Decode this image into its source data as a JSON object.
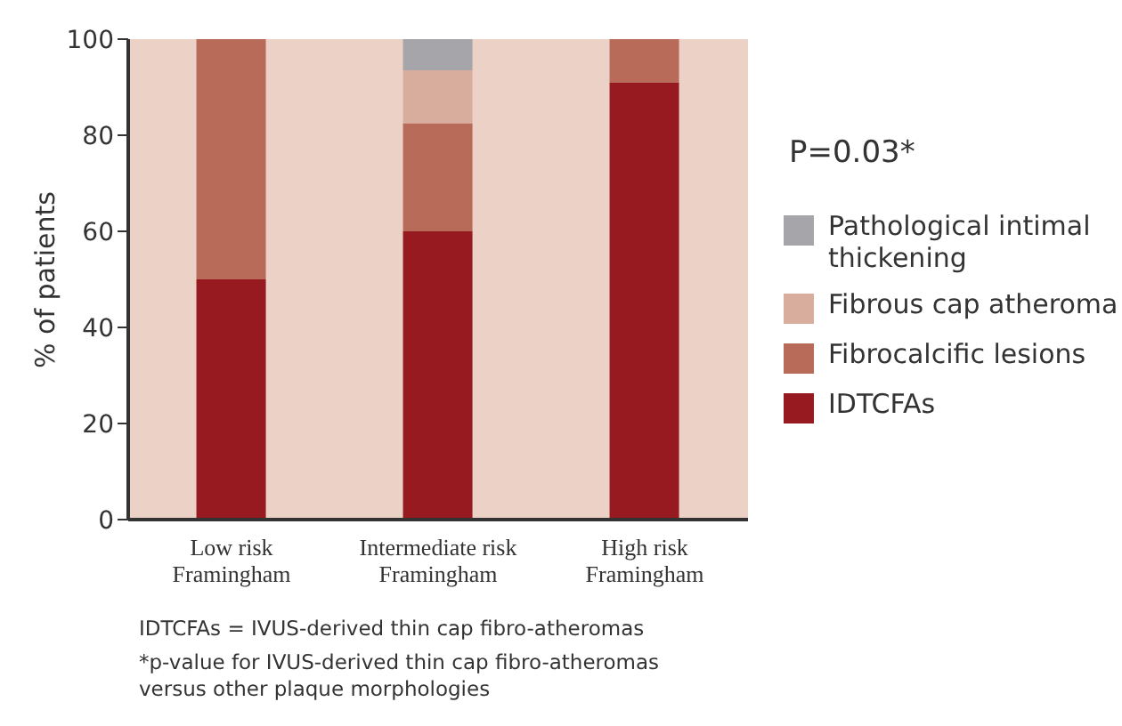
{
  "chart_data": {
    "type": "bar",
    "stacked": true,
    "ylabel": "% of patients",
    "categories": [
      "Low risk Framingham",
      "Intermediate risk Framingham",
      "High risk Framingham"
    ],
    "series": [
      {
        "name": "IDTCFAs",
        "color": "#961a1f",
        "values": [
          50,
          60,
          91
        ]
      },
      {
        "name": "Fibrocalcific lesions",
        "color": "#b96b59",
        "values": [
          50,
          22.5,
          9
        ]
      },
      {
        "name": "Fibrous cap atheroma",
        "color": "#d9ad9d",
        "values": [
          0,
          11,
          0
        ]
      },
      {
        "name": "Pathological intimal thickening",
        "color": "#a6a6aa",
        "values": [
          0,
          6.5,
          0
        ]
      }
    ],
    "ylim": [
      0,
      100
    ],
    "yticks": [
      0,
      20,
      40,
      60,
      80,
      100
    ],
    "grid": false,
    "legend": "right",
    "annotations": [
      "P=0.03*",
      "IDTCFAs = IVUS-derived thin cap fibro-atheromas",
      "*p-value for IVUS-derived thin cap fibro-atheromas versus other plaque morphologies"
    ]
  }
}
